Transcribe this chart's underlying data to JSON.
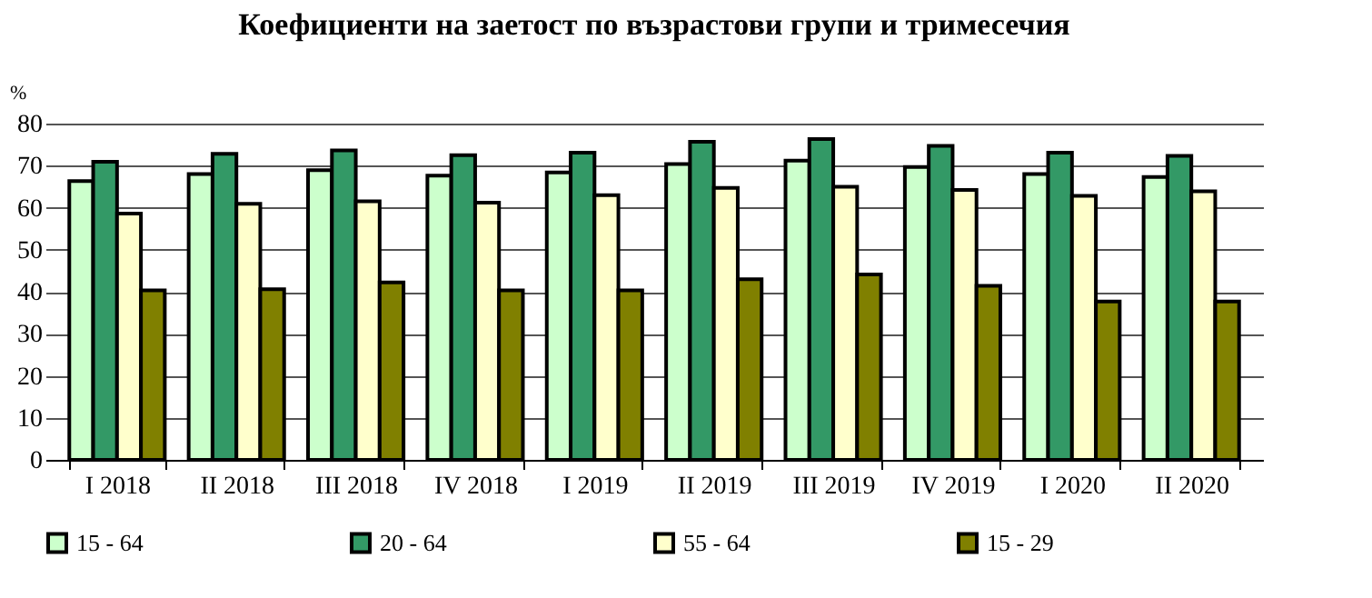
{
  "chart_data": {
    "type": "bar",
    "title": "Коефициенти на заетост по възрастови групи и тримесечия",
    "ylabel": "%",
    "categories": [
      "I 2018",
      "II 2018",
      "III 2018",
      "IV 2018",
      "I 2019",
      "II 2019",
      "III 2019",
      "IV 2019",
      "I 2020",
      "II 2020"
    ],
    "series": [
      {
        "name": "15 - 64",
        "color": "#ccffcc",
        "values": [
          66.3,
          68,
          68.9,
          67.6,
          68.4,
          70.4,
          71.2,
          69.7,
          68,
          67.3
        ]
      },
      {
        "name": "20 - 64",
        "color": "#339966",
        "values": [
          70.9,
          72.8,
          73.6,
          72.5,
          73.1,
          75.7,
          76.3,
          74.7,
          73.1,
          72.3
        ]
      },
      {
        "name": "55 - 64",
        "color": "#ffffcc",
        "values": [
          58.6,
          60.9,
          61.5,
          61.2,
          63,
          64.7,
          65,
          64.2,
          62.8,
          63.9
        ]
      },
      {
        "name": "15 - 29",
        "color": "#808000",
        "values": [
          40.3,
          40.6,
          42.2,
          40.3,
          40.3,
          43,
          44.1,
          41.4,
          37.7,
          37.7
        ]
      }
    ],
    "ylim": [
      0,
      80
    ],
    "yticks": [
      0,
      10,
      20,
      30,
      40,
      50,
      60,
      70,
      80
    ],
    "grid": "y",
    "legend": "bottom"
  }
}
